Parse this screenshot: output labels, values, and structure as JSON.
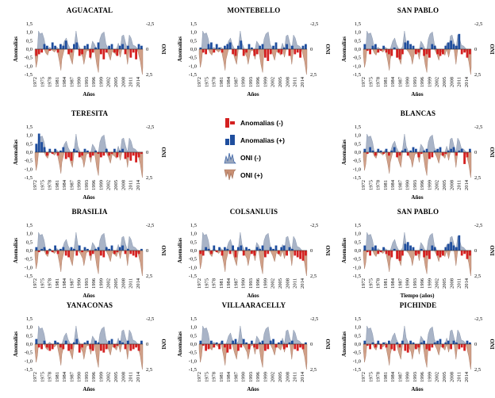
{
  "legend": [
    {
      "label": "Anomalias (-)",
      "color": "#d42020",
      "kind": "anom-neg"
    },
    {
      "label": "Anomalias (+)",
      "color": "#1f4e9e",
      "kind": "anom-pos"
    },
    {
      "label": "ONI (-)",
      "color": "#9aa7bd",
      "kind": "oni-neg"
    },
    {
      "label": "ONI (+)",
      "color": "#c98f73",
      "kind": "oni-pos"
    }
  ],
  "colors": {
    "anom_neg": "#d42020",
    "anom_pos": "#1f4e9e",
    "oni_neg": "#9aa7bd",
    "oni_pos": "#c98f73"
  },
  "chart_data": [
    {
      "type": "bar",
      "title": "AGUACATAL",
      "ylabel": "Anomalías",
      "ylabel_right": "ONI",
      "xlabel": "Años",
      "yticks": [
        "1,5",
        "1,0",
        "0,5",
        "0,0",
        "-0,5",
        "-1,0",
        "-1,5"
      ],
      "ylim": [
        -1.5,
        1.5
      ],
      "y2ticks": [
        "-2,5",
        "0",
        "2,5"
      ],
      "y2lim": [
        -2.5,
        2.5
      ],
      "y2_inverted": true,
      "xticks": [
        "1972",
        "1975",
        "1978",
        "1981",
        "1984",
        "1987",
        "1990",
        "1993",
        "1996",
        "1999",
        "2002",
        "2005",
        "2008",
        "2011",
        "2014"
      ],
      "xlim": [
        1972,
        2016
      ]
    },
    {
      "type": "bar",
      "title": "MONTEBELLO",
      "ylabel": "Anomalías",
      "ylabel_right": "ONI",
      "xlabel": "Años",
      "yticks": [
        "1,5",
        "1,0",
        "0,5",
        "0,0",
        "-0,5",
        "-1,0",
        "-1,5"
      ],
      "ylim": [
        -1.5,
        1.5
      ],
      "y2ticks": [
        "-2,5",
        "0",
        "2,5"
      ],
      "y2lim": [
        -2.5,
        2.5
      ],
      "y2_inverted": true,
      "xticks": [
        "1972",
        "1975",
        "1978",
        "1981",
        "1984",
        "1987",
        "1990",
        "1993",
        "1996",
        "1999",
        "2002",
        "2005",
        "2008",
        "2011",
        "2014"
      ],
      "xlim": [
        1972,
        2016
      ]
    },
    {
      "type": "bar",
      "title": "SAN PABLO",
      "ylabel": "Anomalías",
      "ylabel_right": "ONI",
      "xlabel": "Años",
      "yticks": [
        "1,5",
        "1,0",
        "0,5",
        "0,0",
        "-0,5",
        "-1,0",
        "-1,5"
      ],
      "ylim": [
        -1.5,
        1.5
      ],
      "y2ticks": [
        "-2,5",
        "0",
        "2,5"
      ],
      "y2lim": [
        -2.5,
        2.5
      ],
      "y2_inverted": true,
      "xticks": [
        "1972",
        "1975",
        "1978",
        "1981",
        "1984",
        "1987",
        "1990",
        "1993",
        "1996",
        "1999",
        "2002",
        "2005",
        "2008",
        "2011",
        "2014"
      ],
      "xlim": [
        1972,
        2016
      ]
    },
    {
      "type": "bar",
      "title": "TERESITA",
      "ylabel": "Anomalías",
      "ylabel_right": "ONI",
      "xlabel": "Años",
      "yticks": [
        "1,5",
        "1,0",
        "0,5",
        "0,0",
        "-0,5",
        "-1,0",
        "-1,5"
      ],
      "ylim": [
        -1.5,
        1.5
      ],
      "y2ticks": [
        "-2,5",
        "0",
        "2,5"
      ],
      "y2lim": [
        -2.5,
        2.5
      ],
      "y2_inverted": true,
      "xticks": [
        "1972",
        "1975",
        "1978",
        "1981",
        "1984",
        "1987",
        "1990",
        "1993",
        "1996",
        "1999",
        "2002",
        "2005",
        "2008",
        "2011",
        "2014"
      ],
      "xlim": [
        1972,
        2016
      ]
    },
    {
      "type": "bar",
      "title": "BLANCAS",
      "ylabel": "Anomalías",
      "ylabel_right": "ONI",
      "xlabel": "Años",
      "yticks": [
        "1,5",
        "1,0",
        "0,5",
        "0,0",
        "-0,5",
        "-1,0",
        "-1,5"
      ],
      "ylim": [
        -1.5,
        1.5
      ],
      "y2ticks": [
        "-2,5",
        "0",
        "2,5"
      ],
      "y2lim": [
        -2.5,
        2.5
      ],
      "y2_inverted": true,
      "xticks": [
        "1972",
        "1975",
        "1978",
        "1981",
        "1984",
        "1987",
        "1990",
        "1993",
        "1996",
        "1999",
        "2002",
        "2005",
        "2008",
        "2011",
        "2014"
      ],
      "xlim": [
        1972,
        2016
      ]
    },
    {
      "type": "bar",
      "title": "BRASILIA",
      "ylabel": "Anomalías",
      "ylabel_right": "ONI",
      "xlabel": "Años",
      "yticks": [
        "1,5",
        "1,0",
        "0,5",
        "0,0",
        "-0,5",
        "-1,0",
        "-1,5"
      ],
      "ylim": [
        -1.5,
        1.5
      ],
      "y2ticks": [
        "-2,5",
        "0",
        "2,5"
      ],
      "y2lim": [
        -2.5,
        2.5
      ],
      "y2_inverted": true,
      "xticks": [
        "1972",
        "1975",
        "1978",
        "1981",
        "1984",
        "1987",
        "1990",
        "1993",
        "1996",
        "1999",
        "2002",
        "2005",
        "2008",
        "2011",
        "2014"
      ],
      "xlim": [
        1972,
        2016
      ]
    },
    {
      "type": "bar",
      "title": "COLSANLUIS",
      "ylabel": "Anomalías",
      "ylabel_right": "ONI",
      "xlabel": "Años",
      "yticks": [
        "1,5",
        "1,0",
        "0,5",
        "0,0",
        "-0,5",
        "-1,0",
        "-1,5"
      ],
      "ylim": [
        -1.5,
        1.5
      ],
      "y2ticks": [
        "-2,5",
        "0",
        "2,5"
      ],
      "y2lim": [
        -2.5,
        2.5
      ],
      "y2_inverted": true,
      "xticks": [
        "1972",
        "1975",
        "1978",
        "1981",
        "1984",
        "1987",
        "1990",
        "1993",
        "1996",
        "1999",
        "2002",
        "2005",
        "2008",
        "2011",
        "2014"
      ],
      "xlim": [
        1972,
        2016
      ]
    },
    {
      "type": "bar",
      "title": "SAN PABLO",
      "ylabel": "Anomalías",
      "ylabel_right": "ONI",
      "xlabel": "Tiempo (años)",
      "yticks": [
        "1,5",
        "1,0",
        "0,5",
        "0,0",
        "-0,5",
        "-1,0",
        "-1,5"
      ],
      "ylim": [
        -1.5,
        1.5
      ],
      "y2ticks": [
        "-2,5",
        "0",
        "2,5"
      ],
      "y2lim": [
        -2.5,
        2.5
      ],
      "y2_inverted": true,
      "xticks": [
        "1972",
        "1975",
        "1978",
        "1981",
        "1984",
        "1987",
        "1990",
        "1993",
        "1996",
        "1999",
        "2002",
        "2005",
        "2008",
        "2011",
        "2014"
      ],
      "xlim": [
        1972,
        2016
      ]
    },
    {
      "type": "bar",
      "title": "YANACONAS",
      "ylabel": "Anomalías",
      "ylabel_right": "ONI",
      "xlabel": "Años",
      "yticks": [
        "1,5",
        "1,0",
        "0,5",
        "0,0",
        "-0,5",
        "-1,0",
        "-1,5"
      ],
      "ylim": [
        -1.5,
        1.5
      ],
      "y2ticks": [
        "-2,5",
        "0",
        "2,5"
      ],
      "y2lim": [
        -2.5,
        2.5
      ],
      "y2_inverted": true,
      "xticks": [
        "1972",
        "1975",
        "1978",
        "1981",
        "1984",
        "1987",
        "1990",
        "1993",
        "1996",
        "1999",
        "2002",
        "2005",
        "2008",
        "2011",
        "2014"
      ],
      "xlim": [
        1972,
        2016
      ]
    },
    {
      "type": "bar",
      "title": "VILLAARACELLY",
      "ylabel": "Anomalías",
      "ylabel_right": "ONI",
      "xlabel": "Años",
      "yticks": [
        "1,5",
        "1,0",
        "0,5",
        "0,0",
        "-0,5",
        "-1,0",
        "-1,5"
      ],
      "ylim": [
        -1.5,
        1.5
      ],
      "y2ticks": [
        "-2,5",
        "0",
        "2,5"
      ],
      "y2lim": [
        -2.5,
        2.5
      ],
      "y2_inverted": true,
      "xticks": [
        "1972",
        "1975",
        "1978",
        "1981",
        "1984",
        "1987",
        "1990",
        "1993",
        "1996",
        "1999",
        "2002",
        "2005",
        "2008",
        "2011",
        "2014"
      ],
      "xlim": [
        1972,
        2016
      ]
    },
    {
      "type": "bar",
      "title": "PICHINDE",
      "ylabel": "Anomalías",
      "ylabel_right": "ONI",
      "xlabel": "Años",
      "yticks": [
        "1,5",
        "1,0",
        "0,5",
        "0,0",
        "-0,5",
        "-1,0",
        "-1,5"
      ],
      "ylim": [
        -1.5,
        1.5
      ],
      "y2ticks": [
        "-2,5",
        "0",
        "2,5"
      ],
      "y2lim": [
        -2.5,
        2.5
      ],
      "y2_inverted": true,
      "xticks": [
        "1972",
        "1975",
        "1978",
        "1981",
        "1984",
        "1987",
        "1990",
        "1993",
        "1996",
        "1999",
        "2002",
        "2005",
        "2008",
        "2011",
        "2014"
      ],
      "xlim": [
        1972,
        2016
      ]
    }
  ],
  "oni_series": {
    "name": "ONI",
    "x": [
      1972.0,
      1972.5,
      1973.0,
      1973.5,
      1974.0,
      1975.0,
      1975.8,
      1976.5,
      1977.2,
      1978.0,
      1979.0,
      1980.0,
      1981.0,
      1982.0,
      1982.6,
      1983.0,
      1984.0,
      1984.8,
      1985.5,
      1986.5,
      1987.3,
      1988.0,
      1988.8,
      1989.5,
      1990.5,
      1991.5,
      1992.0,
      1993.0,
      1994.0,
      1994.8,
      1995.5,
      1996.3,
      1997.2,
      1997.9,
      1998.5,
      1999.2,
      2000.2,
      2001.0,
      2002.0,
      2002.8,
      2003.5,
      2004.5,
      2005.3,
      2006.0,
      2006.8,
      2007.5,
      2008.2,
      2009.0,
      2009.8,
      2010.5,
      2011.2,
      2012.0,
      2013.0,
      2014.0,
      2015.0,
      2015.8,
      2016.0
    ],
    "values": [
      0.5,
      1.8,
      1.2,
      -1.8,
      -1.5,
      -1.6,
      -1.0,
      0.4,
      0.6,
      -0.2,
      0.1,
      0.3,
      -0.2,
      1.2,
      2.1,
      1.0,
      -0.8,
      -1.1,
      -0.5,
      0.9,
      1.5,
      -0.3,
      -1.8,
      -0.6,
      0.3,
      0.8,
      1.5,
      0.2,
      0.1,
      1.0,
      -0.8,
      -0.5,
      1.5,
      2.3,
      -1.0,
      -1.5,
      -1.7,
      -0.5,
      0.5,
      1.1,
      0.2,
      0.4,
      0.6,
      -0.6,
      0.8,
      -1.3,
      -1.4,
      -0.6,
      1.5,
      -1.4,
      -1.1,
      -0.4,
      -0.3,
      0.2,
      1.2,
      2.5,
      1.8
    ]
  },
  "anomaly_series": [
    {
      "station": "AGUACATAL",
      "values": [
        -0.4,
        -0.3,
        -0.2,
        0.3,
        0.2,
        -0.1,
        0.4,
        0.2,
        -0.2,
        0.3,
        0.2,
        0.5,
        -0.3,
        -0.2,
        0.3,
        0.4,
        -0.4,
        -0.3,
        0.2,
        0.3,
        -0.5,
        -0.2,
        0.1,
        0.4,
        -0.3,
        -0.6,
        -0.2,
        0.2,
        0.3,
        -0.2,
        -0.4,
        0.2,
        0.3,
        -0.3,
        0.2,
        -0.5,
        -0.2,
        -0.6,
        0.3,
        0.2
      ]
    },
    {
      "station": "MONTEBELLO",
      "values": [
        0.1,
        -0.2,
        -0.3,
        0.3,
        0.4,
        -0.2,
        0.3,
        0.1,
        -0.2,
        0.2,
        0.3,
        0.4,
        -0.3,
        -0.4,
        0.2,
        0.5,
        -0.4,
        -0.2,
        0.3,
        0.1,
        -0.4,
        -0.3,
        0.2,
        0.3,
        -0.5,
        -0.7,
        -0.3,
        0.2,
        0.4,
        -0.2,
        -0.3,
        0.1,
        0.3,
        -0.4,
        0.2,
        -0.3,
        -0.2,
        -0.5,
        0.2,
        0.3
      ]
    },
    {
      "station": "SAN PABLO",
      "values": [
        0.3,
        -0.1,
        -0.3,
        0.2,
        0.3,
        -0.2,
        -0.1,
        0.2,
        -0.2,
        -0.3,
        -0.4,
        0.1,
        -0.5,
        -0.6,
        -0.3,
        0.4,
        0.5,
        0.3,
        0.2,
        -0.3,
        -0.2,
        0.1,
        -0.4,
        -0.3,
        -0.5,
        0.3,
        0.2,
        -0.3,
        -0.4,
        -0.3,
        0.2,
        0.4,
        0.5,
        0.3,
        0.2,
        0.9,
        -0.3,
        -0.2,
        -0.5,
        -0.3
      ]
    },
    {
      "station": "TERESITA",
      "values": [
        0.5,
        1.1,
        0.6,
        0.3,
        -0.2,
        0.2,
        -0.1,
        0.2,
        -0.2,
        0.1,
        0.3,
        -0.4,
        -0.3,
        -0.5,
        0.2,
        0.1,
        -0.3,
        -0.2,
        0.2,
        0.1,
        -0.3,
        -0.2,
        0.1,
        -0.1,
        -0.3,
        -0.2,
        0.2,
        -0.2,
        -0.1,
        0.2,
        -0.3,
        0.1,
        0.2,
        -0.4,
        -0.3,
        -0.5,
        -0.2,
        -0.6,
        -0.3,
        -0.1
      ]
    },
    {
      "station": "BLANCAS",
      "values": [
        0.2,
        -0.1,
        0.3,
        0.1,
        -0.2,
        0.2,
        0.1,
        -0.1,
        0.2,
        -0.2,
        0.1,
        0.3,
        -0.3,
        -0.2,
        0.1,
        0.2,
        -0.2,
        0.1,
        0.3,
        0.2,
        -0.3,
        -0.1,
        0.1,
        0.2,
        -0.4,
        -0.3,
        0.1,
        0.2,
        0.3,
        -0.2,
        -0.1,
        0.1,
        0.2,
        0.3,
        -0.2,
        0.1,
        0.2,
        -0.7,
        -0.3,
        0.2
      ]
    },
    {
      "station": "BRASILIA",
      "values": [
        0.2,
        -0.1,
        0.1,
        0.2,
        -0.2,
        0.1,
        -0.1,
        0.3,
        -0.2,
        0.1,
        0.2,
        -0.3,
        -0.4,
        0.2,
        0.1,
        -0.3,
        0.3,
        -0.1,
        0.2,
        0.1,
        -0.3,
        -0.2,
        0.1,
        0.2,
        -0.3,
        -0.4,
        0.2,
        0.1,
        0.3,
        -0.2,
        -0.1,
        0.2,
        0.3,
        -0.2,
        0.1,
        -0.2,
        -0.3,
        -0.4,
        -0.2,
        0.1
      ]
    },
    {
      "station": "COLSANLUIS",
      "values": [
        -0.2,
        -0.3,
        0.2,
        0.1,
        -0.2,
        0.3,
        -0.1,
        0.2,
        -0.3,
        0.2,
        0.1,
        -0.2,
        0.3,
        -0.4,
        0.2,
        0.3,
        -0.3,
        0.2,
        0.1,
        -0.2,
        -0.3,
        0.2,
        0.1,
        0.3,
        -0.4,
        -0.2,
        0.2,
        0.1,
        0.3,
        -0.2,
        0.2,
        0.3,
        -0.3,
        0.2,
        0.1,
        -0.3,
        -0.4,
        -0.5,
        -0.6,
        -0.3
      ]
    },
    {
      "station": "SAN PABLO",
      "values": [
        0.3,
        -0.1,
        -0.3,
        0.2,
        0.3,
        -0.2,
        -0.1,
        0.2,
        -0.2,
        -0.3,
        -0.4,
        0.1,
        -0.5,
        -0.6,
        -0.3,
        0.4,
        0.5,
        0.3,
        0.2,
        -0.3,
        -0.2,
        0.1,
        -0.4,
        -0.3,
        -0.5,
        0.3,
        0.2,
        -0.3,
        -0.4,
        -0.3,
        0.2,
        0.4,
        0.5,
        0.3,
        0.2,
        0.9,
        -0.3,
        -0.2,
        -0.5,
        -0.3
      ]
    },
    {
      "station": "YANACONAS",
      "values": [
        0.3,
        -0.2,
        -0.3,
        0.2,
        -0.2,
        -0.4,
        -0.3,
        0.2,
        0.1,
        -0.2,
        -0.3,
        0.2,
        -0.4,
        -0.3,
        0.1,
        0.3,
        -0.5,
        -0.2,
        0.1,
        0.2,
        -0.3,
        -0.4,
        0.2,
        0.1,
        -0.4,
        -0.5,
        -0.3,
        0.2,
        0.3,
        -0.2,
        -0.1,
        0.2,
        0.1,
        -0.3,
        0.2,
        -0.4,
        -0.3,
        -0.2,
        -0.4,
        0.2
      ]
    },
    {
      "station": "VILLAARACELLY",
      "values": [
        0.2,
        -0.1,
        -0.4,
        -0.3,
        0.2,
        -0.2,
        0.1,
        -0.3,
        0.2,
        -0.2,
        -0.5,
        -0.3,
        0.2,
        0.3,
        -0.4,
        -0.2,
        0.3,
        0.1,
        -0.3,
        0.2,
        -0.2,
        -0.3,
        0.1,
        0.2,
        -0.4,
        -0.3,
        0.2,
        0.3,
        -0.2,
        0.1,
        0.2,
        -0.3,
        -0.2,
        0.1,
        0.2,
        -0.3,
        -0.4,
        -0.2,
        -0.3,
        0.1
      ]
    },
    {
      "station": "PICHINDE",
      "values": [
        0.2,
        -0.1,
        -0.3,
        0.1,
        -0.2,
        0.2,
        -0.3,
        0.1,
        -0.2,
        0.2,
        -0.3,
        -0.4,
        0.1,
        -0.2,
        0.2,
        -0.4,
        -0.5,
        0.2,
        0.1,
        -0.3,
        -0.2,
        0.1,
        0.2,
        -0.3,
        -0.4,
        -0.2,
        0.1,
        0.2,
        0.3,
        -0.2,
        0.1,
        0.2,
        -0.3,
        0.2,
        0.1,
        -0.3,
        -0.2,
        -0.4,
        0.2,
        0.1
      ]
    }
  ]
}
